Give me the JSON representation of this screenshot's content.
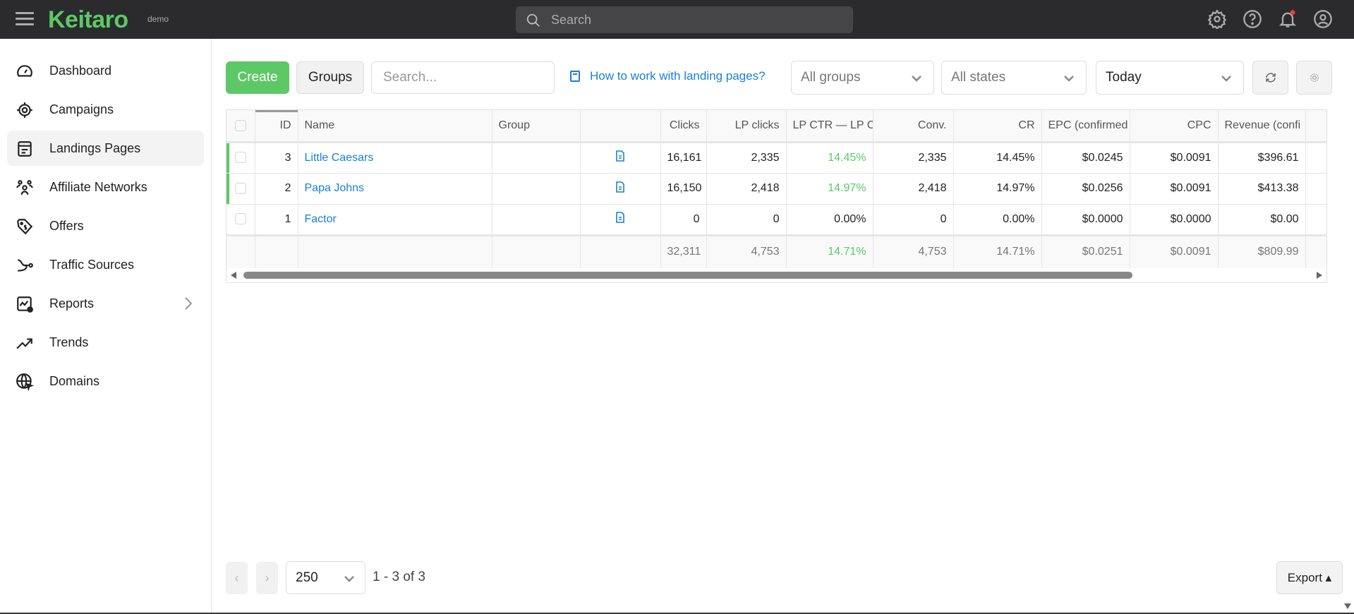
{
  "header": {
    "logo": "Keitaro",
    "logo_sub": "demo",
    "search_placeholder": "Search",
    "icons": [
      "gear-icon",
      "help-icon",
      "bell-icon",
      "user-icon"
    ],
    "notification_color": "#e8403a"
  },
  "sidebar": {
    "items": [
      {
        "label": "Dashboard",
        "icon": "dashboard-icon"
      },
      {
        "label": "Campaigns",
        "icon": "target-icon"
      },
      {
        "label": "Landings Pages",
        "icon": "landing-icon",
        "active": true
      },
      {
        "label": "Affiliate Networks",
        "icon": "people-icon"
      },
      {
        "label": "Offers",
        "icon": "tag-icon"
      },
      {
        "label": "Traffic Sources",
        "icon": "source-icon"
      },
      {
        "label": "Reports",
        "icon": "report-icon",
        "has_submenu": true
      },
      {
        "label": "Trends",
        "icon": "trend-icon"
      },
      {
        "label": "Domains",
        "icon": "globe-icon"
      }
    ]
  },
  "toolbar": {
    "create": "Create",
    "groups": "Groups",
    "search_placeholder": "Search...",
    "help_link": "How to work with landing pages?",
    "group_filter": "All groups",
    "state_filter": "All states",
    "date_filter": "Today"
  },
  "table": {
    "columns": [
      "",
      "ID",
      "Name",
      "Group",
      "",
      "Clicks",
      "LP clicks",
      "LP CTR — LP C",
      "Conv.",
      "CR",
      "EPC (confirmed",
      "CPC",
      "Revenue (confi",
      ""
    ],
    "rows": [
      {
        "id": "3",
        "name": "Little Caesars",
        "group": "",
        "clicks": "16,161",
        "lp_clicks": "2,335",
        "lp_ctr": "14.45%",
        "conv": "2,335",
        "cr": "14.45%",
        "epc": "$0.0245",
        "cpc": "$0.0091",
        "revenue": "$396.61",
        "active": true
      },
      {
        "id": "2",
        "name": "Papa Johns",
        "group": "",
        "clicks": "16,150",
        "lp_clicks": "2,418",
        "lp_ctr": "14.97%",
        "conv": "2,418",
        "cr": "14.97%",
        "epc": "$0.0256",
        "cpc": "$0.0091",
        "revenue": "$413.38",
        "active": true
      },
      {
        "id": "1",
        "name": "Factor",
        "group": "",
        "clicks": "0",
        "lp_clicks": "0",
        "lp_ctr": "0.00%",
        "conv": "0",
        "cr": "0.00%",
        "epc": "$0.0000",
        "cpc": "$0.0000",
        "revenue": "$0.00",
        "active": false
      }
    ],
    "totals": {
      "clicks": "32,311",
      "lp_clicks": "4,753",
      "lp_ctr": "14.71%",
      "conv": "4,753",
      "cr": "14.71%",
      "epc": "$0.0251",
      "cpc": "$0.0091",
      "revenue": "$809.99"
    }
  },
  "pagination": {
    "per_page": "250",
    "range": "1 - 3 of 3",
    "prev": "‹",
    "next": "›"
  },
  "export": "Export ▴",
  "colors": {
    "accent": "#5dc866",
    "link": "#1a7fd8",
    "topbar": "#2b2b2d"
  }
}
